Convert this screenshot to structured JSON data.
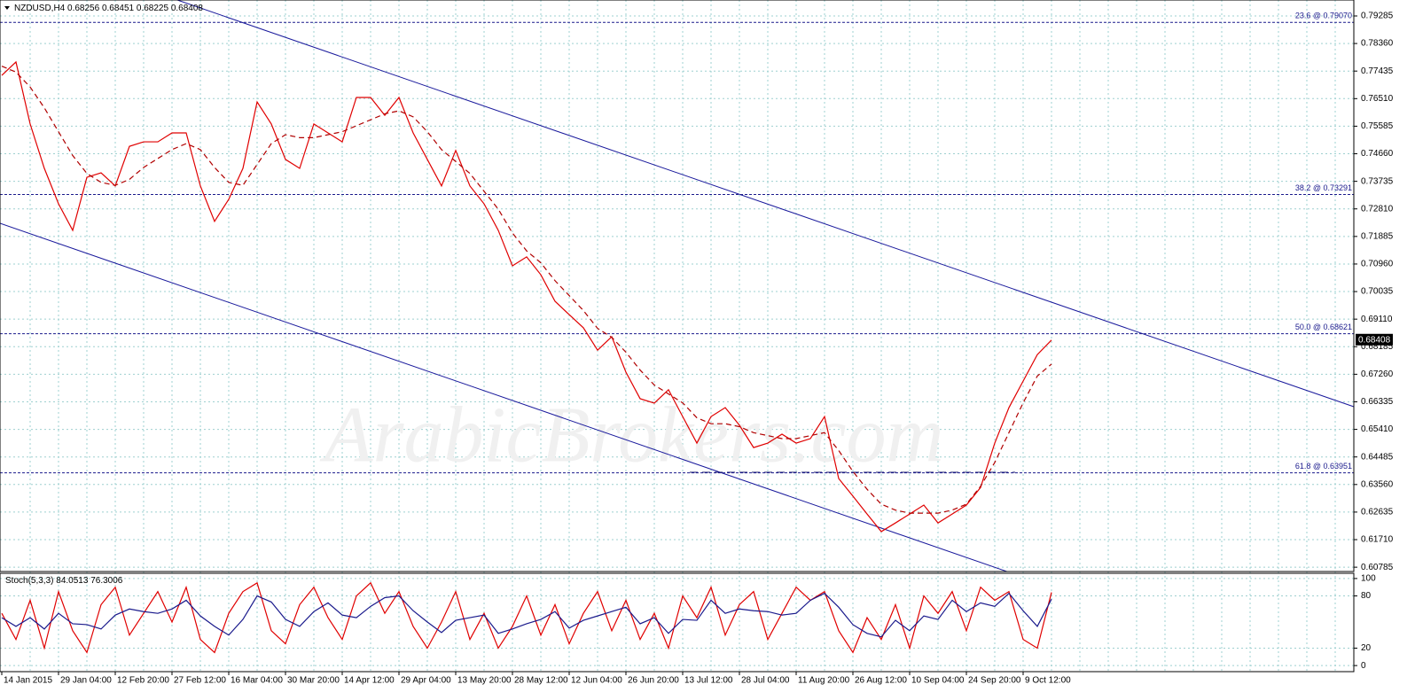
{
  "chart_data": [
    {
      "type": "line",
      "title": "NZDUSD,H4",
      "header_values": [
        0.68256,
        0.68451,
        0.68225
      ],
      "watermark": "ArabicBrokers.com",
      "categories": [
        "14 Jan 2015",
        null,
        null,
        null,
        "29 Jan 04:00",
        null,
        null,
        null,
        "12 Feb 20:00",
        null,
        null,
        null,
        "27 Feb 12:00",
        null,
        null,
        null,
        "16 Mar 04:00",
        null,
        null,
        null,
        "30 Mar 20:00",
        null,
        null,
        null,
        "14 Apr 12:00",
        null,
        null,
        null,
        "29 Apr 04:00",
        null,
        null,
        null,
        "13 May 20:00",
        null,
        null,
        null,
        "28 May 12:00",
        null,
        null,
        null,
        "12 Jun 04:00",
        null,
        null,
        null,
        "26 Jun 20:00",
        null,
        null,
        null,
        "13 Jul 12:00",
        null,
        null,
        null,
        "28 Jul 04:00",
        null,
        null,
        null,
        "11 Aug 20:00",
        null,
        null,
        null,
        "26 Aug 12:00",
        null,
        null,
        null,
        "10 Sep 04:00",
        null,
        null,
        null,
        "24 Sep 20:00",
        null,
        null,
        null,
        "9 Oct 12:00",
        null,
        null
      ],
      "series": [
        {
          "color": "#e00000",
          "values": [
            0.7729,
            0.7774,
            0.7566,
            0.7417,
            0.7298,
            0.7209,
            0.7387,
            0.7402,
            0.7358,
            0.7491,
            0.7506,
            0.7506,
            0.7536,
            0.7536,
            0.7358,
            0.7239,
            0.7313,
            0.7417,
            0.764,
            0.7566,
            0.7447,
            0.7417,
            0.7566,
            0.7536,
            0.7506,
            0.7655,
            0.7655,
            0.7595,
            0.7655,
            0.7536,
            0.7447,
            0.7358,
            0.7477,
            0.7358,
            0.7298,
            0.7209,
            0.709,
            0.712,
            0.706,
            0.6971,
            0.6926,
            0.6882,
            0.6807,
            0.6852,
            0.6733,
            0.6644,
            0.6629,
            0.6674,
            0.6584,
            0.6495,
            0.6584,
            0.6614,
            0.6555,
            0.648,
            0.6495,
            0.6525,
            0.6495,
            0.651,
            0.6584,
            0.6376,
            0.6317,
            0.6257,
            0.6198,
            0.6227,
            0.6257,
            0.6287,
            0.6227,
            0.6257,
            0.6287,
            0.6346,
            0.6495,
            0.6614,
            0.6703,
            0.6792,
            0.68408
          ]
        },
        {
          "color": "#b00000",
          "dashed": true,
          "values": [
            0.776,
            0.774,
            0.769,
            0.762,
            0.754,
            0.746,
            0.74,
            0.737,
            0.736,
            0.738,
            0.742,
            0.745,
            0.748,
            0.75,
            0.748,
            0.742,
            0.737,
            0.736,
            0.743,
            0.75,
            0.753,
            0.752,
            0.752,
            0.753,
            0.754,
            0.756,
            0.758,
            0.76,
            0.761,
            0.759,
            0.754,
            0.748,
            0.744,
            0.74,
            0.734,
            0.728,
            0.72,
            0.714,
            0.71,
            0.704,
            0.699,
            0.694,
            0.688,
            0.685,
            0.68,
            0.674,
            0.669,
            0.666,
            0.663,
            0.658,
            0.656,
            0.656,
            0.655,
            0.653,
            0.652,
            0.651,
            0.651,
            0.652,
            0.653,
            0.647,
            0.64,
            0.634,
            0.629,
            0.627,
            0.626,
            0.626,
            0.626,
            0.627,
            0.629,
            0.635,
            0.643,
            0.653,
            0.663,
            0.672,
            0.676
          ]
        }
      ],
      "levels": [
        {
          "value": 0.7907,
          "label": "23.6 @ 0.79070"
        },
        {
          "value": 0.73291,
          "label": "38.2 @ 0.73291"
        },
        {
          "value": 0.68621,
          "label": "50.0 @ 0.68621"
        },
        {
          "value": 0.63951,
          "label": "61.8 @ 0.63951"
        }
      ],
      "ylim": [
        0.6064,
        0.7982
      ],
      "yticks": [
        0.79285,
        {
          "value": 0.7836,
          "label": "0.78360"
        },
        0.77435,
        {
          "value": 0.7651,
          "label": "0.76510"
        },
        0.75585,
        {
          "value": 0.7466,
          "label": "0.74660"
        },
        0.73735,
        {
          "value": 0.7281,
          "label": "0.72810"
        },
        0.71885,
        {
          "value": 0.7096,
          "label": "0.70960"
        },
        0.70035,
        {
          "value": 0.6911,
          "label": "0.69110"
        },
        0.68185,
        {
          "value": 0.6726,
          "label": "0.67260"
        },
        0.66335,
        {
          "value": 0.6541,
          "label": "0.65410"
        },
        0.64485,
        {
          "value": 0.6356,
          "label": "0.63560"
        },
        0.62635,
        {
          "value": 0.6171,
          "label": "0.61710"
        },
        0.60785
      ],
      "grid": true
    },
    {
      "type": "line",
      "title": "Stoch(5,3,3)",
      "series": [
        {
          "color": "#e00000",
          "values": [
            60,
            30,
            75,
            20,
            85,
            40,
            15,
            70,
            90,
            35,
            60,
            85,
            50,
            90,
            30,
            15,
            60,
            85,
            95,
            40,
            25,
            70,
            90,
            55,
            30,
            80,
            95,
            60,
            85,
            45,
            20,
            50,
            85,
            30,
            60,
            20,
            45,
            80,
            35,
            70,
            25,
            60,
            85,
            40,
            75,
            30,
            60,
            20,
            80,
            55,
            90,
            35,
            70,
            85,
            30,
            60,
            90,
            75,
            85,
            40,
            15,
            55,
            30,
            70,
            20,
            80,
            60,
            85,
            40,
            90,
            75,
            85,
            30,
            20,
            84.0513
          ]
        },
        {
          "color": "#1a1a8c",
          "values": [
            55,
            45,
            55,
            42,
            60,
            48,
            47,
            42,
            58,
            65,
            62,
            60,
            65,
            75,
            57,
            45,
            35,
            53,
            80,
            73,
            53,
            45,
            62,
            72,
            58,
            55,
            68,
            78,
            80,
            63,
            50,
            38,
            52,
            55,
            58,
            37,
            42,
            48,
            53,
            62,
            43,
            52,
            57,
            62,
            67,
            48,
            55,
            37,
            53,
            52,
            75,
            60,
            65,
            63,
            62,
            58,
            60,
            75,
            83,
            67,
            47,
            37,
            33,
            52,
            40,
            57,
            53,
            75,
            62,
            72,
            68,
            83,
            63,
            45,
            76.3006
          ]
        }
      ],
      "ylim": [
        -7,
        106
      ],
      "yticks": [
        0,
        20,
        80,
        100
      ],
      "grid": true
    }
  ]
}
